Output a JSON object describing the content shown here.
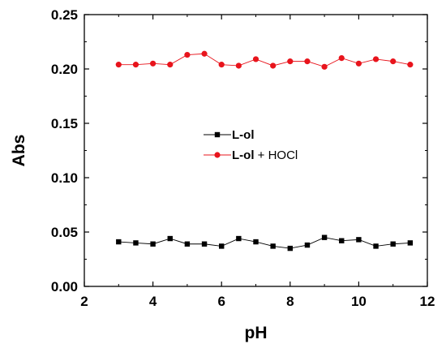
{
  "chart_data": {
    "type": "line",
    "xlabel": "pH",
    "ylabel": "Abs",
    "xlim": [
      2,
      12
    ],
    "ylim": [
      0.0,
      0.25
    ],
    "xticks": [
      2,
      4,
      6,
      8,
      10,
      12
    ],
    "yticks": [
      0.0,
      0.05,
      0.1,
      0.15,
      0.2,
      0.25
    ],
    "xtick_labels": [
      "2",
      "4",
      "6",
      "8",
      "10",
      "12"
    ],
    "ytick_labels": [
      "0.00",
      "0.05",
      "0.10",
      "0.15",
      "0.20",
      "0.25"
    ],
    "grid": false,
    "legend_position": "center",
    "x": [
      3.0,
      3.5,
      4.0,
      4.5,
      5.0,
      5.5,
      6.0,
      6.5,
      7.0,
      7.5,
      8.0,
      8.5,
      9.0,
      9.5,
      10.0,
      10.5,
      11.0,
      11.5
    ],
    "series": [
      {
        "name": "L-ol",
        "name_bold": "L-ol",
        "name_rest": "",
        "color": "#000000",
        "marker": "square",
        "values": [
          0.041,
          0.04,
          0.039,
          0.044,
          0.039,
          0.039,
          0.037,
          0.044,
          0.041,
          0.037,
          0.035,
          0.038,
          0.045,
          0.042,
          0.043,
          0.037,
          0.039,
          0.04
        ]
      },
      {
        "name": "L-ol + HOCl",
        "name_bold": "L-ol",
        "name_rest": " + HOCl",
        "color": "#e8141c",
        "marker": "circle",
        "values": [
          0.204,
          0.204,
          0.205,
          0.204,
          0.213,
          0.214,
          0.204,
          0.203,
          0.209,
          0.203,
          0.207,
          0.207,
          0.202,
          0.21,
          0.205,
          0.209,
          0.207,
          0.204
        ]
      }
    ]
  }
}
